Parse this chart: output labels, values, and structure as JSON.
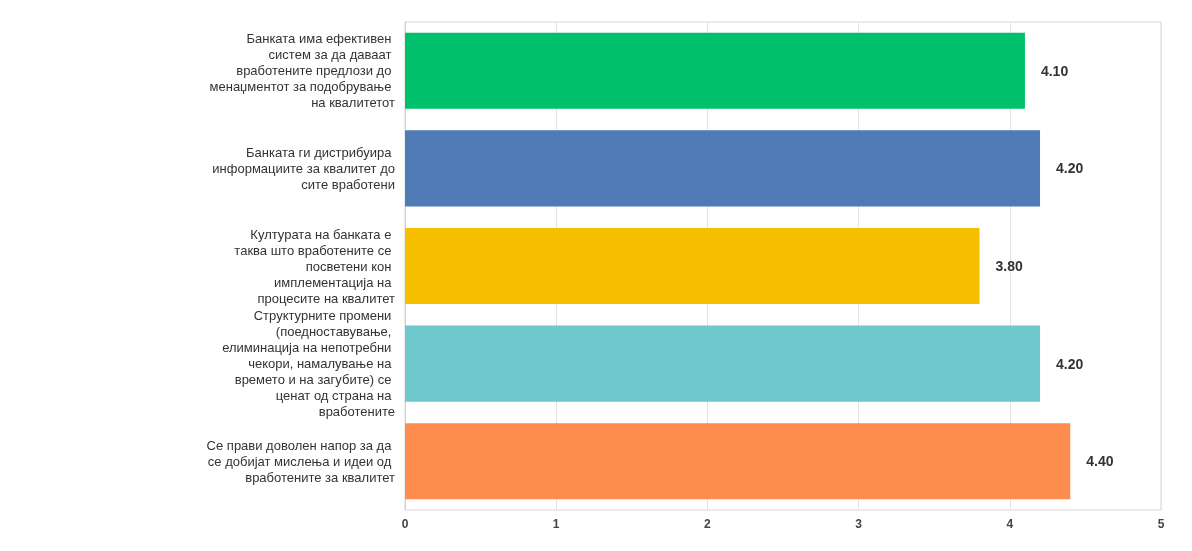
{
  "chart_data": {
    "type": "bar",
    "orientation": "horizontal",
    "categories": [
      "Банката има ефективен систем за да даваат вработените предлози до менаџментот за подобрување на квалитетот",
      "Банката ги дистрибуира информациите за квалитет до сите вработени",
      "Културата на банката е таква што вработените се посветени кон имплементација на процесите на квалитет",
      "Структурните промени (поедноставување, елиминација на непотребни чекори, намалување на времето и на загубите) се ценат од страна на вработените",
      "Се прави доволен напор за да се добијат мислења и идеи од вработените за квалитет"
    ],
    "values": [
      4.1,
      4.2,
      3.8,
      4.2,
      4.4
    ],
    "value_labels": [
      "4.10",
      "4.20",
      "3.80",
      "4.20",
      "4.40"
    ],
    "colors": [
      "#00c06b",
      "#4e7ab5",
      "#f5bf00",
      "#6cc8cc",
      "#ff8c4f"
    ],
    "xlim": [
      0,
      5
    ],
    "xticks": [
      0,
      1,
      2,
      3,
      4,
      5
    ],
    "grid": "x"
  }
}
